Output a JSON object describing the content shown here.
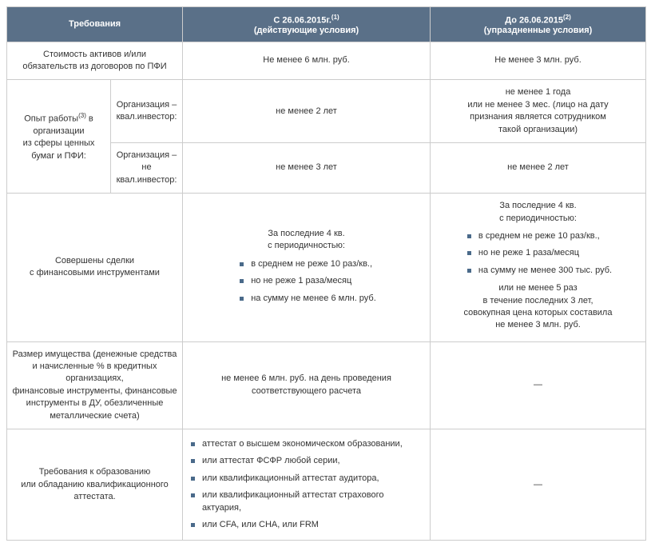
{
  "header": {
    "req": "Требования",
    "col1_line1": "С 26.06.2015г.",
    "col1_sup": "(1)",
    "col1_line2": "(действующие условия)",
    "col2_line1": "До 26.06.2015",
    "col2_sup": "(2)",
    "col2_line2": "(упраздненные условия)"
  },
  "row1": {
    "req": "Стоимость активов и/или\nобязательств из договоров по ПФИ",
    "c1": "Не менее 6 млн. руб.",
    "c2": "Не менее 3 млн. руб."
  },
  "row2": {
    "req_main_pre": "Опыт работы",
    "req_main_sup": "(3)",
    "req_main_post": " в организации\nиз сферы ценных бумаг и ПФИ:",
    "sub_a": "Организация – квал.инвестор:",
    "sub_b": "Организация – не квал.инвестор:",
    "a_c1": "не менее 2 лет",
    "a_c2": "не менее 1 года\nили не менее 3 мес. (лицо на дату\nпризнания является сотрудником\nтакой организации)",
    "b_c1": "не менее 3 лет",
    "b_c2": "не менее 2 лет"
  },
  "row3": {
    "req": "Совершены сделки\nс финансовыми инструментами",
    "c1_intro": "За последние 4 кв.\nс периодичностью:",
    "c1_items": [
      "в среднем не реже 10 раз/кв.,",
      "но не реже 1 раза/месяц",
      "на сумму не менее 6 млн. руб."
    ],
    "c2_intro": "За последние 4 кв.\nс периодичностью:",
    "c2_items": [
      "в среднем не реже 10 раз/кв.,",
      "но не реже 1 раза/месяц",
      "на сумму не менее 300 тыс. руб."
    ],
    "c2_outro": "или не менее 5 раз\nв течение последних 3 лет,\nсовокупная цена которых составила\nне менее 3 млн. руб."
  },
  "row4": {
    "req": "Размер имущества (денежные средства\nи начисленные % в кредитных организациях,\nфинансовые инструменты, финансовые\nинструменты в ДУ, обезличенные\nметаллические счета)",
    "c1": "не менее 6 млн. руб. на день проведения\nсоответствующего расчета",
    "c2": "—"
  },
  "row5": {
    "req": "Требования к образованию\nили обладанию квалификационного аттестата.",
    "c1_items": [
      "аттестат о высшем экономическом образовании,",
      "или аттестат ФСФР любой серии,",
      "или квалификационный аттестат аудитора,",
      "или квалификационный аттестат страхового актуария,",
      "или CFA, или CHA, или FRM"
    ],
    "c2": "—"
  },
  "style": {
    "header_bg": "#5a7088",
    "header_fg": "#ffffff",
    "border_color": "#cccccc",
    "bullet_color": "#4a6a8a",
    "text_color": "#333333",
    "font_size_pt": 11
  }
}
